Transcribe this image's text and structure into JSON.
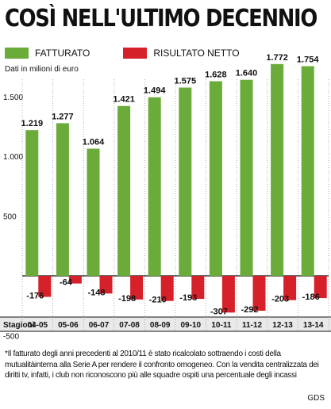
{
  "title": "COSÌ NELL'ULTIMO DECENNIO",
  "unit_note": "Dati in milioni di euro",
  "legend": [
    {
      "label": "FATTURATO",
      "color": "#6aab3a"
    },
    {
      "label": "RISULTATO NETTO",
      "color": "#d6202a"
    }
  ],
  "axis_row_label": "Stagioni",
  "footnote": "*Il fatturato degli anni precedenti al 2010/11 è stato ricalcolato sottraendo i costi della mutualitàinterna alla Serie A per rendere il confronto omogeneo. Con la vendita centralizzata dei diritti tv, infatti, i club non riconoscono più alle squadre ospiti una percentuale degli incassi",
  "source": "GDS",
  "chart_data": {
    "type": "bar",
    "title": "COSÌ NELL'ULTIMO DECENNIO",
    "xlabel": "Stagioni",
    "ylabel": "Dati in milioni di euro",
    "categories": [
      "04-05",
      "05-06",
      "06-07",
      "07-08",
      "08-09",
      "09-10",
      "10-11",
      "11-12",
      "12-13",
      "13-14"
    ],
    "series": [
      {
        "name": "FATTURATO",
        "color": "#6aab3a",
        "values": [
          1219,
          1277,
          1064,
          1421,
          1494,
          1575,
          1628,
          1640,
          1772,
          1754
        ],
        "labels": [
          "1.219",
          "1.277",
          "1.064",
          "1.421",
          "1.494",
          "1.575",
          "1.628",
          "1.640",
          "1.772",
          "1.754"
        ]
      },
      {
        "name": "RISULTATO NETTO",
        "color": "#d6202a",
        "values": [
          -176,
          -64,
          -148,
          -198,
          -210,
          -193,
          -307,
          -292,
          -203,
          -186
        ],
        "labels": [
          "-176",
          "-64",
          "-148",
          "-198",
          "-210",
          "-193",
          "-307",
          "-292",
          "-203",
          "-186"
        ]
      }
    ],
    "yticks": [
      -500,
      0,
      500,
      1000,
      1500
    ],
    "ytick_labels": [
      "-500",
      "",
      "500",
      "1.000",
      "1.500"
    ],
    "ylim": [
      -500,
      1850
    ],
    "grid": "vertical-dotted",
    "legend_position": "top-left"
  }
}
